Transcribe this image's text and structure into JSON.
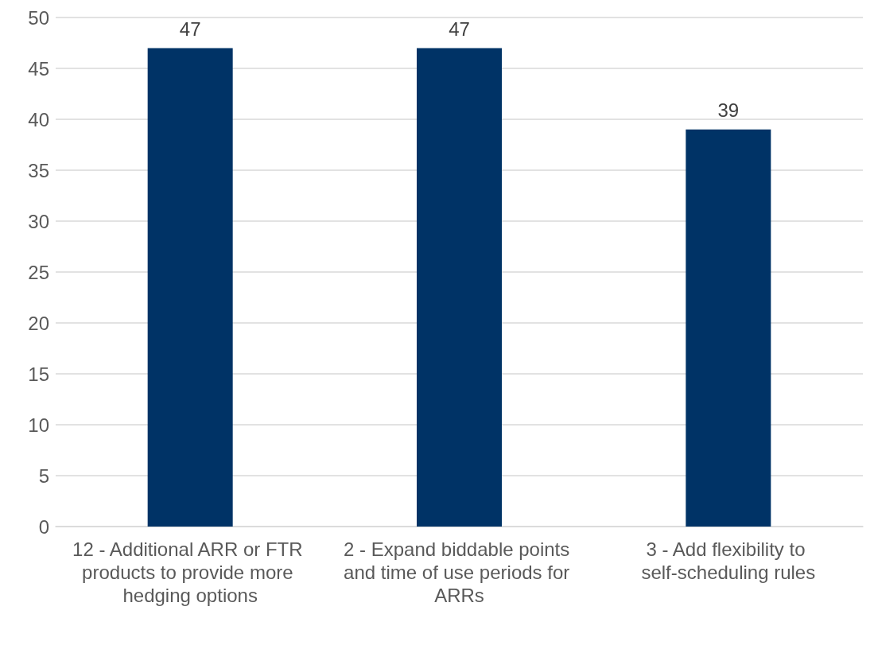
{
  "chart_data": {
    "type": "bar",
    "categories": [
      "12 - Additional ARR or FTR products to provide more hedging options",
      "2 - Expand biddable points and time of use periods for ARRs",
      "3 - Add flexibility to self-scheduling rules"
    ],
    "values": [
      47,
      47,
      39
    ],
    "color": "#003366",
    "ylim": [
      0,
      50
    ],
    "yticks": [
      0,
      5,
      10,
      15,
      20,
      25,
      30,
      35,
      40,
      45,
      50
    ],
    "grid": "y",
    "data_labels": true
  }
}
